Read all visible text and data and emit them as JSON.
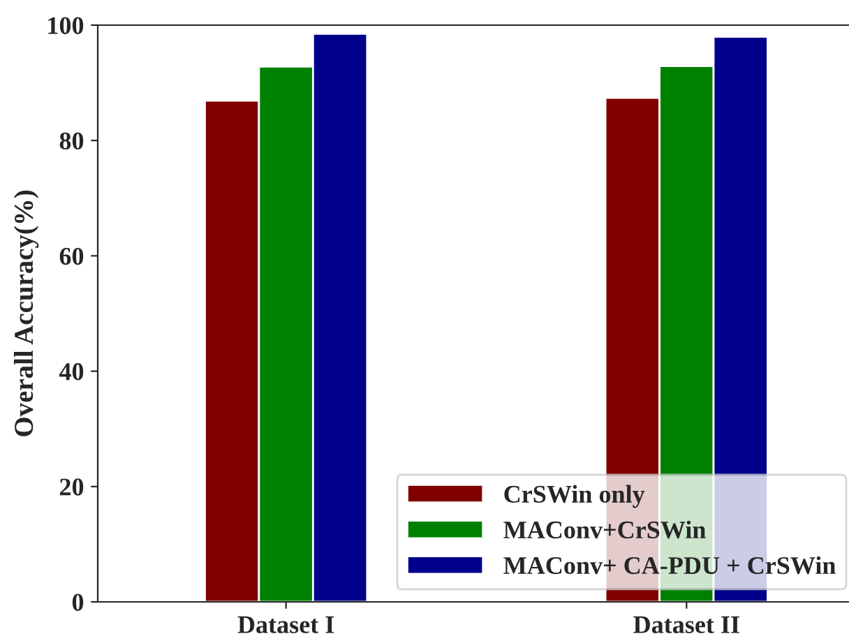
{
  "chart_data": {
    "type": "bar",
    "ylabel": "Overall Accuracy(%)",
    "categories": [
      "Dataset I",
      "Dataset II"
    ],
    "series": [
      {
        "name": "CrSWin only",
        "color": "#800000",
        "values": [
          86.9,
          87.4
        ]
      },
      {
        "name": "MAConv+CrSWin",
        "color": "#008000",
        "values": [
          92.8,
          92.9
        ]
      },
      {
        "name": "MAConv+ CA-PDU + CrSWin",
        "color": "#00008b",
        "values": [
          98.5,
          98.0
        ]
      }
    ],
    "ylim": [
      0,
      100
    ],
    "yticks": [
      0,
      20,
      40,
      60,
      80,
      100
    ],
    "grid": false,
    "legend": "bottom right"
  }
}
